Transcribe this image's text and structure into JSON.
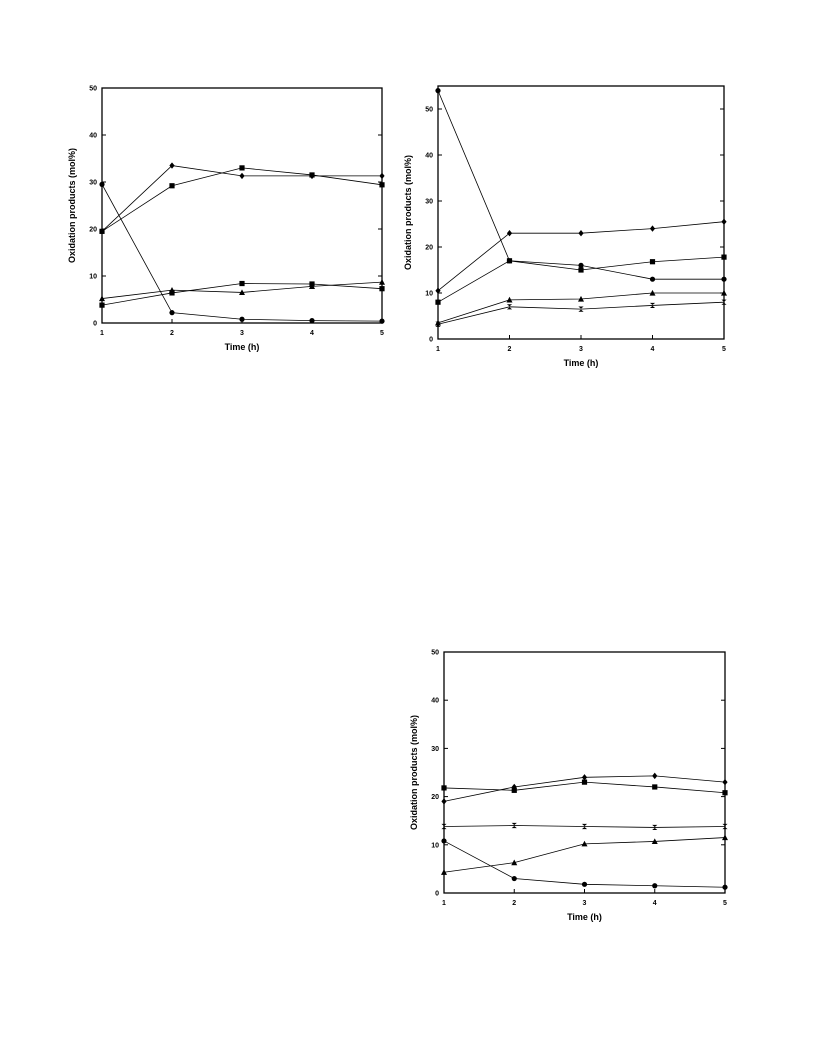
{
  "chart_data": [
    {
      "type": "line",
      "xlabel": "Time (h)",
      "ylabel": "Oxidation products (mol%)",
      "xlim": [
        1,
        5
      ],
      "ylim": [
        0,
        50
      ],
      "xticks": [
        1,
        2,
        3,
        4,
        5
      ],
      "yticks": [
        0,
        10,
        20,
        30,
        40,
        50
      ],
      "grid": false,
      "x": [
        1,
        2,
        3,
        4,
        5
      ],
      "series": [
        {
          "marker": "diamond",
          "values": [
            19.5,
            33.5,
            31.3,
            31.3,
            31.3
          ]
        },
        {
          "marker": "square",
          "values": [
            19.5,
            29.2,
            33.0,
            31.5,
            29.4
          ]
        },
        {
          "marker": "circle",
          "values": [
            29.5,
            2.2,
            0.8,
            0.5,
            0.4
          ]
        },
        {
          "marker": "square",
          "values": [
            3.8,
            6.4,
            8.4,
            8.3,
            7.3
          ]
        },
        {
          "marker": "triangle",
          "values": [
            5.2,
            7.0,
            6.5,
            7.8,
            8.7
          ]
        }
      ]
    },
    {
      "type": "line",
      "xlabel": "Time (h)",
      "ylabel": "Oxidation products (mol%)",
      "xlim": [
        1,
        5
      ],
      "ylim": [
        0,
        55
      ],
      "xticks": [
        1,
        2,
        3,
        4,
        5
      ],
      "yticks": [
        0,
        10,
        20,
        30,
        40,
        50
      ],
      "grid": false,
      "x": [
        1,
        2,
        3,
        4,
        5
      ],
      "series": [
        {
          "marker": "circle",
          "values": [
            54.0,
            17.0,
            16.0,
            13.0,
            13.0
          ]
        },
        {
          "marker": "diamond",
          "values": [
            10.5,
            23.0,
            23.0,
            24.0,
            25.5
          ]
        },
        {
          "marker": "square",
          "values": [
            8.0,
            17.0,
            15.0,
            16.8,
            17.8
          ]
        },
        {
          "marker": "triangle",
          "values": [
            3.5,
            8.5,
            8.7,
            10.0,
            10.0
          ]
        },
        {
          "marker": "bowtie",
          "values": [
            3.2,
            7.0,
            6.5,
            7.3,
            8.0
          ]
        }
      ]
    },
    {
      "type": "line",
      "xlabel": "Time (h)",
      "ylabel": "Oxidation products (mol%)",
      "xlim": [
        1,
        5
      ],
      "ylim": [
        0,
        50
      ],
      "xticks": [
        1,
        2,
        3,
        4,
        5
      ],
      "yticks": [
        0,
        10,
        20,
        30,
        40,
        50
      ],
      "grid": false,
      "x": [
        1,
        2,
        3,
        4,
        5
      ],
      "series": [
        {
          "marker": "diamond",
          "values": [
            19.0,
            22.0,
            24.0,
            24.3,
            23.0
          ]
        },
        {
          "marker": "square",
          "values": [
            21.8,
            21.3,
            23.0,
            22.0,
            20.8
          ]
        },
        {
          "marker": "bowtie",
          "values": [
            13.8,
            14.0,
            13.8,
            13.6,
            13.8
          ]
        },
        {
          "marker": "triangle",
          "values": [
            4.3,
            6.3,
            10.2,
            10.7,
            11.5
          ]
        },
        {
          "marker": "circle",
          "values": [
            10.8,
            3.0,
            1.8,
            1.5,
            1.2
          ]
        }
      ]
    }
  ]
}
